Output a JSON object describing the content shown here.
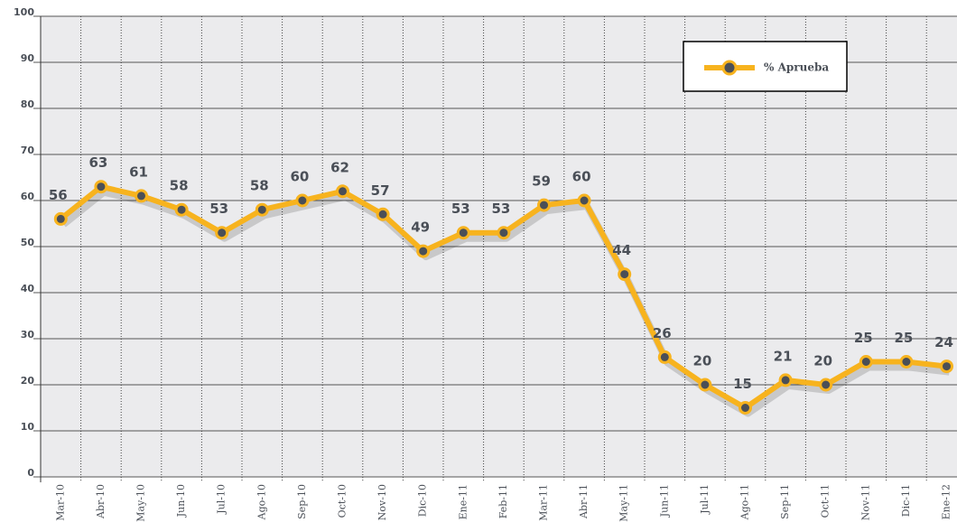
{
  "chart_data": {
    "type": "line",
    "categories": [
      "Mar-10",
      "Abr-10",
      "May-10",
      "Jun-10",
      "Jul-10",
      "Ago-10",
      "Sep-10",
      "Oct-10",
      "Nov-10",
      "Dic-10",
      "Ene-11",
      "Feb-11",
      "Mar-11",
      "Abr-11",
      "May-11",
      "Jun-11",
      "Jul-11",
      "Ago-11",
      "Sep-11",
      "Oct-11",
      "Nov-11",
      "Dic-11",
      "Ene-12"
    ],
    "series": [
      {
        "name": "% Aprueba",
        "color": "#f7b31e",
        "values": [
          56,
          63,
          61,
          58,
          53,
          58,
          60,
          62,
          57,
          49,
          53,
          53,
          59,
          60,
          44,
          26,
          20,
          15,
          21,
          20,
          25,
          25,
          24
        ]
      }
    ],
    "ylim": [
      0,
      100
    ],
    "yticks": [
      0,
      10,
      20,
      30,
      40,
      50,
      60,
      70,
      80,
      90,
      100
    ],
    "grid": true,
    "legend": "top-right"
  }
}
